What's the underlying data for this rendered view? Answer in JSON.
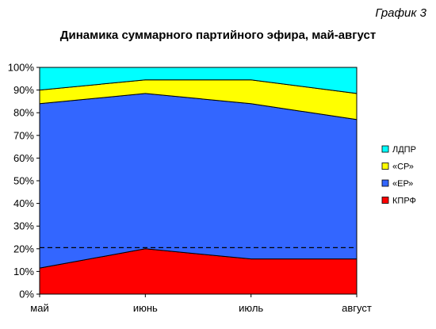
{
  "page": {
    "corner_label": "График 3"
  },
  "chart_data": {
    "type": "area",
    "stacked": true,
    "title": "Динамика суммарного партийного эфира, май-август",
    "categories": [
      "май",
      "июнь",
      "июль",
      "август"
    ],
    "y_ticks": [
      "0%",
      "10%",
      "20%",
      "30%",
      "40%",
      "50%",
      "60%",
      "70%",
      "80%",
      "90%",
      "100%"
    ],
    "ylim": [
      0,
      100
    ],
    "y_unit": "%",
    "grid": false,
    "reference_line": {
      "value": 20.5,
      "style": "dashed",
      "color": "#000000"
    },
    "legend_position": "right",
    "series": [
      {
        "name": "КПРФ",
        "values": [
          11.5,
          20,
          15.5,
          15.5
        ],
        "color": "#ff0000"
      },
      {
        "name": "«ЕР»",
        "values": [
          72.5,
          68.5,
          68.5,
          61.5
        ],
        "color": "#3366ff"
      },
      {
        "name": "«СР»",
        "values": [
          6,
          6,
          10.5,
          11.5
        ],
        "color": "#ffff00"
      },
      {
        "name": "ЛДПР",
        "values": [
          10,
          5.5,
          5.5,
          11.5
        ],
        "color": "#00ffff"
      }
    ]
  }
}
